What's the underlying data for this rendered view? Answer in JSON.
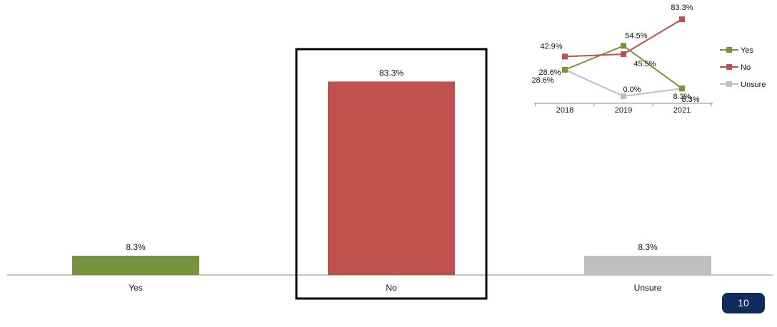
{
  "colors": {
    "yes": "#77933c",
    "no": "#c0504d",
    "unsure": "#bfbfbf",
    "axis": "#888888",
    "highlight_box": "#000000",
    "badge": "#0f2a5c"
  },
  "page_number": "10",
  "chart_data": [
    {
      "type": "bar",
      "title": "",
      "xlabel": "",
      "ylabel": "",
      "ylim": [
        0,
        100
      ],
      "categories": [
        "Yes",
        "No",
        "Unsure"
      ],
      "values": [
        8.3,
        83.3,
        8.3
      ],
      "value_labels": [
        "8.3%",
        "83.3%",
        "8.3%"
      ],
      "highlighted_category": "No",
      "legend": "none",
      "grid": false
    },
    {
      "type": "line",
      "title": "",
      "xlabel": "",
      "ylabel": "",
      "x": [
        "2018",
        "2019",
        "2021"
      ],
      "ylim": [
        0,
        90
      ],
      "legend": "right",
      "grid": false,
      "series": [
        {
          "name": "Yes",
          "values": [
            28.6,
            54.5,
            8.3
          ],
          "labels": [
            "28.6%",
            "54.5%",
            "8.3%"
          ]
        },
        {
          "name": "No",
          "values": [
            42.9,
            45.5,
            83.3
          ],
          "labels": [
            "42.9%",
            "45.5%",
            "83.3%"
          ]
        },
        {
          "name": "Unsure",
          "values": [
            28.6,
            0.0,
            8.3
          ],
          "labels": [
            "28.6%",
            "0.0%",
            "8.3%"
          ]
        }
      ]
    }
  ]
}
